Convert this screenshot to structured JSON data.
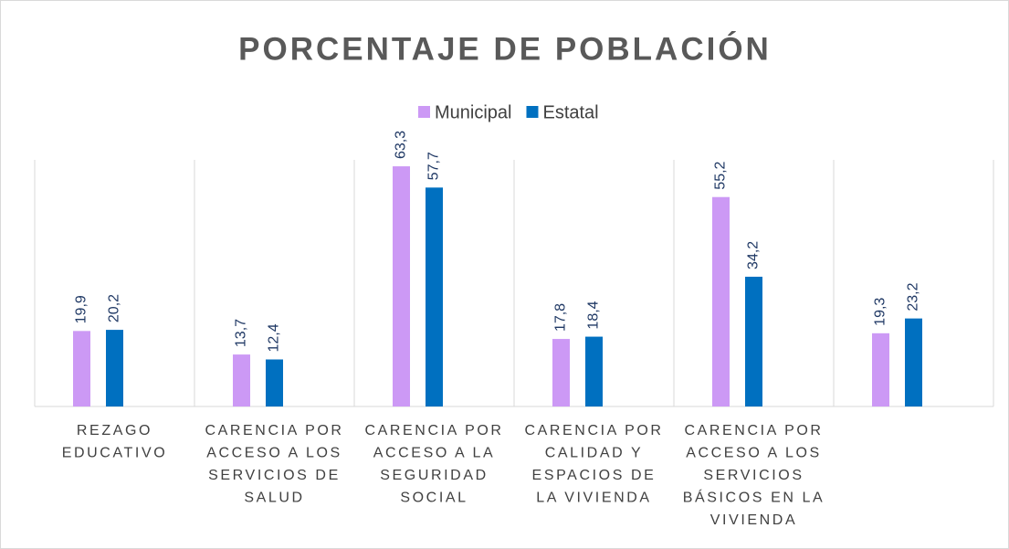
{
  "chart_data": {
    "type": "bar",
    "title": "PORCENTAJE DE POBLACIÓN",
    "categories": [
      "REZAGO EDUCATIVO",
      "CARENCIA POR ACCESO A LOS SERVICIOS DE SALUD",
      "CARENCIA POR ACCESO A LA SEGURIDAD SOCIAL",
      "CARENCIA POR CALIDAD Y ESPACIOS DE LA VIVIENDA",
      "CARENCIA POR ACCESO A LOS SERVICIOS BÁSICOS EN LA VIVIENDA",
      null
    ],
    "series": [
      {
        "name": "Municipal",
        "color": "#cc99f5",
        "values": [
          19.9,
          13.7,
          63.3,
          17.8,
          55.2,
          19.3
        ],
        "value_labels": [
          "19,9",
          "13,7",
          "63,3",
          "17,8",
          "55,2",
          "19,3"
        ]
      },
      {
        "name": "Estatal",
        "color": "#0070c0",
        "values": [
          20.2,
          12.4,
          57.7,
          18.4,
          34.2,
          23.2
        ],
        "value_labels": [
          "20,2",
          "12,4",
          "57,7",
          "18,4",
          "34,2",
          "23,2"
        ]
      }
    ],
    "ylim": [
      0,
      65
    ],
    "legend": "top"
  }
}
